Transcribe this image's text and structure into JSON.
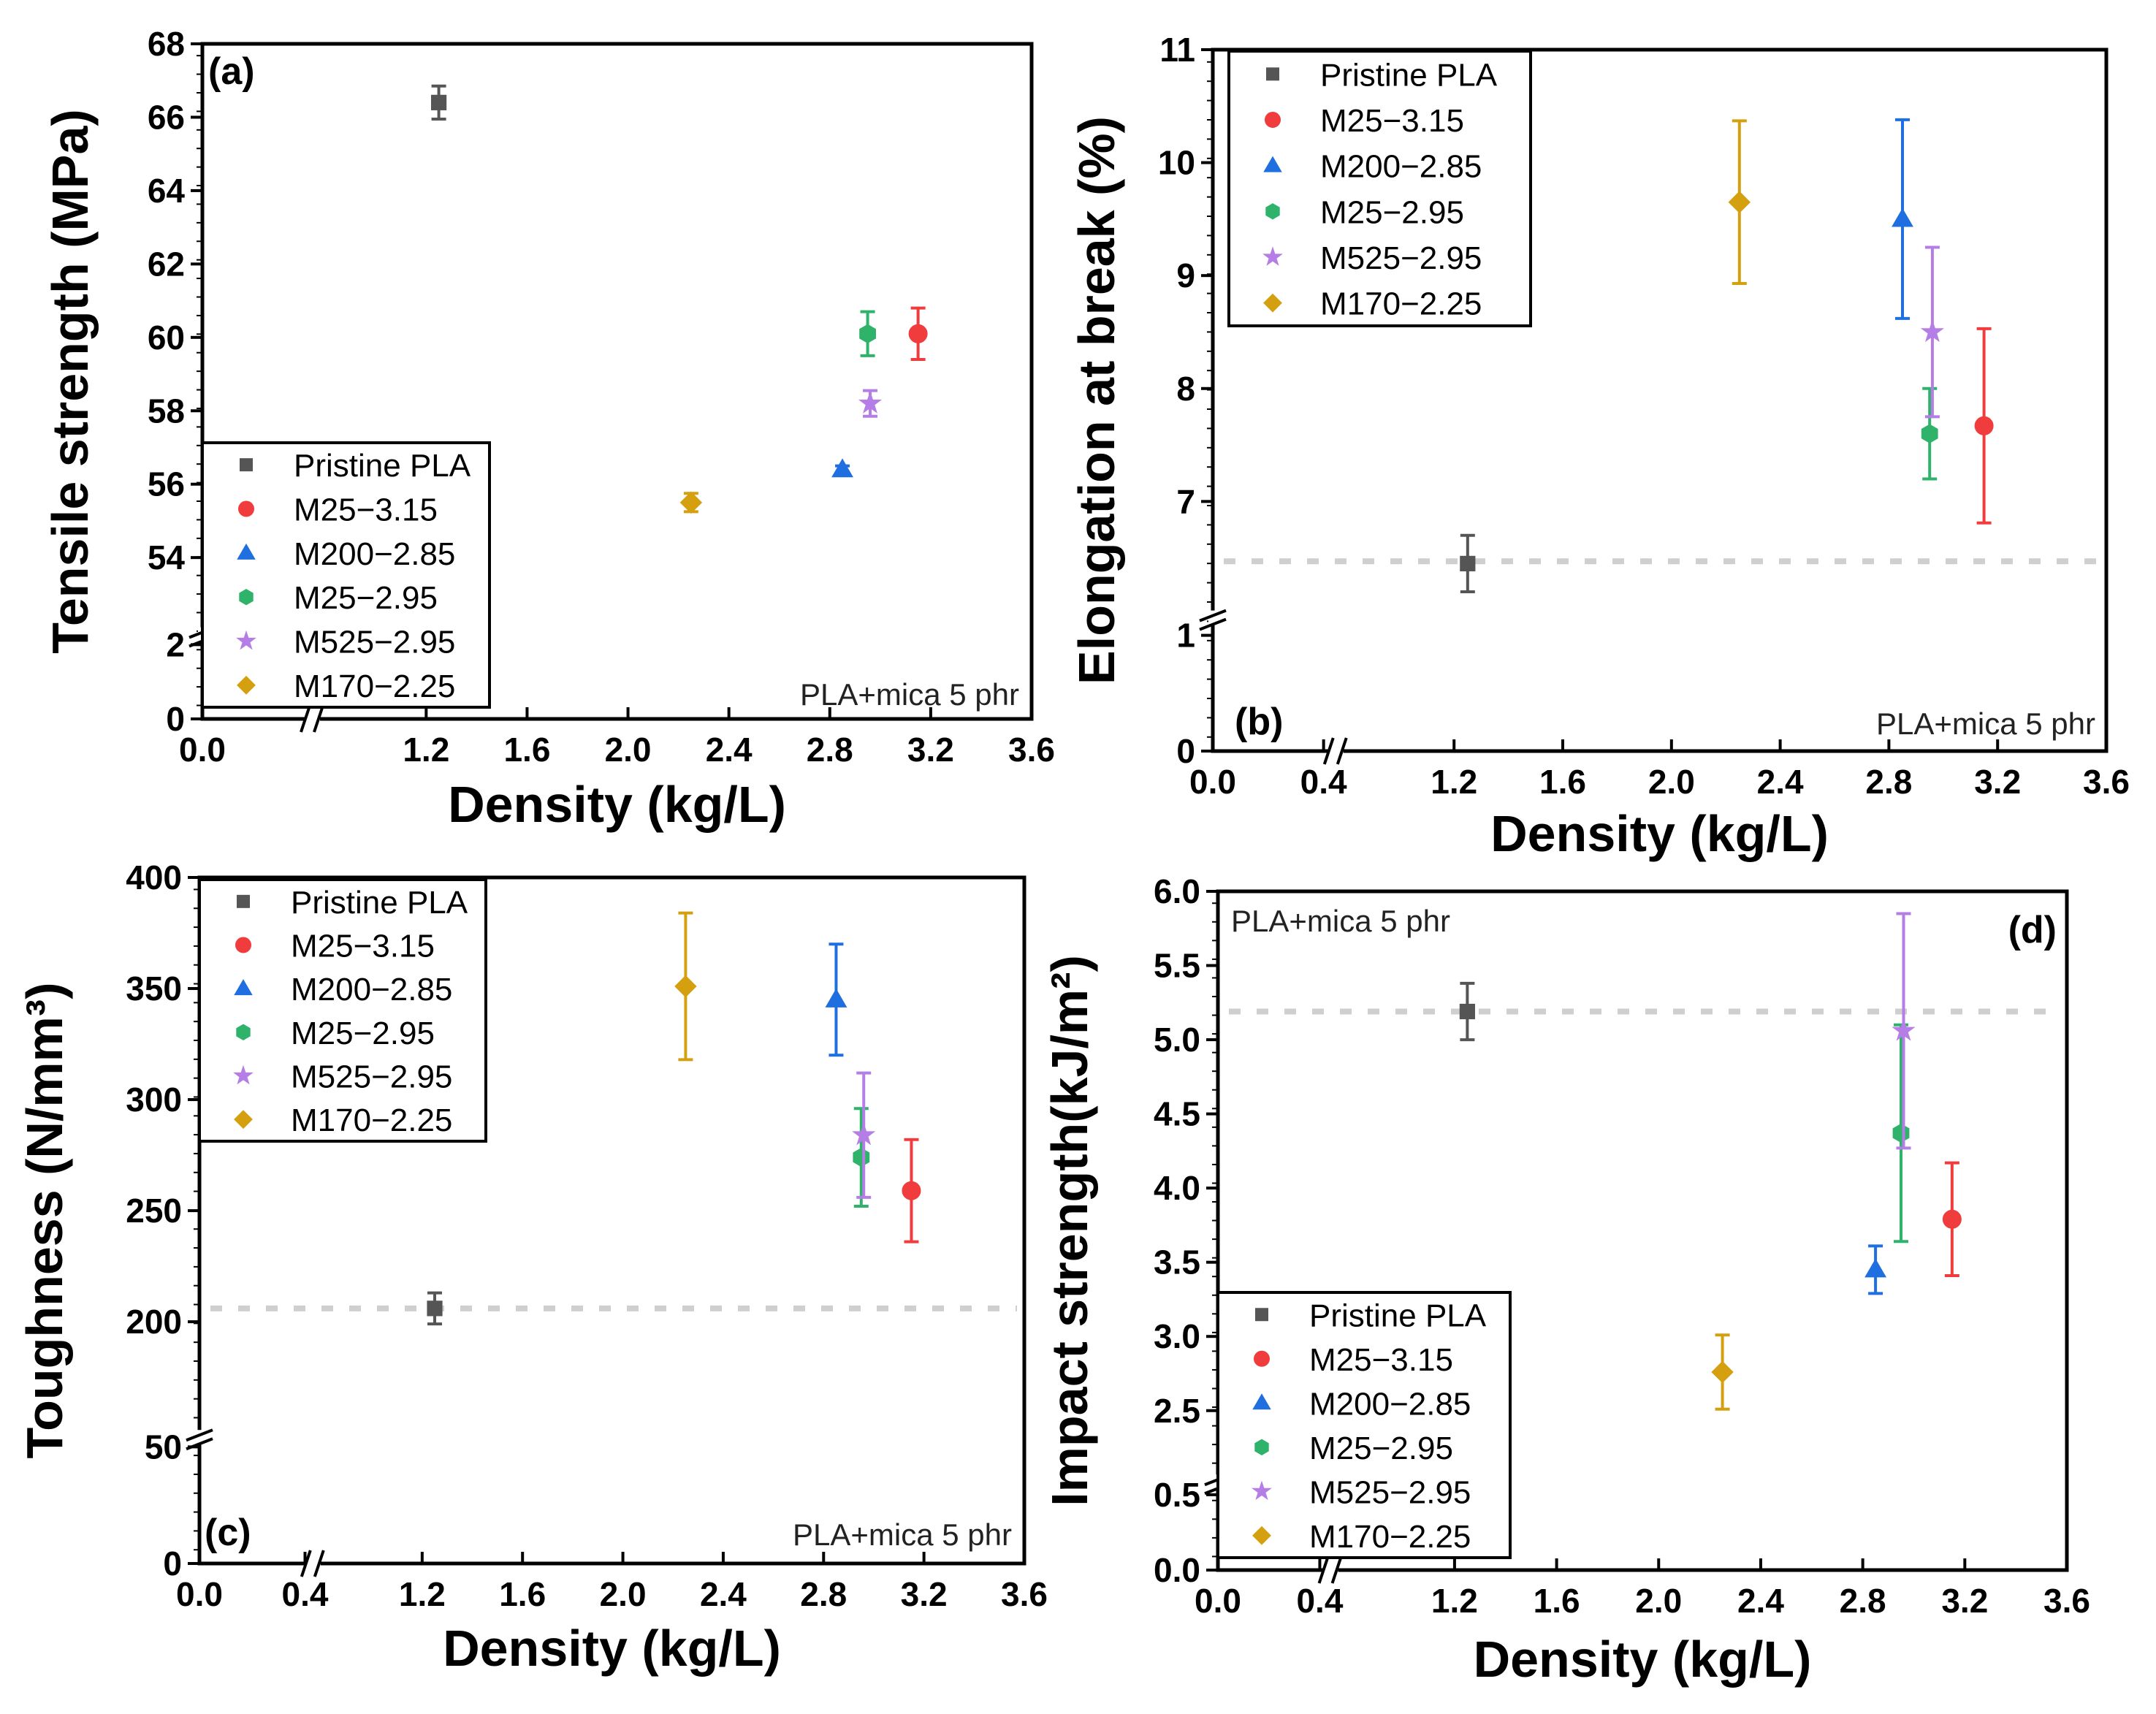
{
  "chart_data": [
    {
      "panel_label": "(a)",
      "type": "scatter",
      "title": "",
      "xlabel": "Density (kg/L)",
      "ylabel": "Tensile strength (MPa)",
      "annotation": "PLA+mica 5 phr",
      "xlim": [
        0,
        3.6
      ],
      "ylim": [
        0,
        68
      ],
      "x_break": [
        0.44,
        0.75
      ],
      "y_break": [
        2.3,
        52
      ],
      "x_ticks": [
        "0.0",
        "1.2",
        "1.6",
        "2.0",
        "2.4",
        "2.8",
        "3.2",
        "3.6"
      ],
      "y_ticks": [
        "0",
        "2",
        "54",
        "56",
        "58",
        "60",
        "62",
        "64",
        "66",
        "68"
      ],
      "reference_line": null,
      "legend_position": "bottom-left",
      "series": [
        {
          "name": "Pristine PLA",
          "color": "#555555",
          "marker": "square",
          "x": 1.25,
          "y": 66.4,
          "err": 0.45
        },
        {
          "name": "M25−3.15",
          "color": "#f03c3c",
          "marker": "circle",
          "x": 3.15,
          "y": 60.1,
          "err": 0.7
        },
        {
          "name": "M200−2.85",
          "color": "#1f6fe0",
          "marker": "triangle",
          "x": 2.85,
          "y": 56.4,
          "err": 0.1
        },
        {
          "name": "M25−2.95",
          "color": "#2fb36a",
          "marker": "hexagon",
          "x": 2.95,
          "y": 60.1,
          "err": 0.6
        },
        {
          "name": "M525−2.95",
          "color": "#b57ee6",
          "marker": "star",
          "x": 2.96,
          "y": 58.2,
          "err": 0.35
        },
        {
          "name": "M170−2.25",
          "color": "#d4a010",
          "marker": "diamond",
          "x": 2.25,
          "y": 55.5,
          "err": 0.25
        }
      ]
    },
    {
      "panel_label": "(b)",
      "type": "scatter",
      "title": "",
      "xlabel": "Density (kg/L)",
      "ylabel": "Elongation at break (%)",
      "annotation": "PLA+mica 5 phr",
      "xlim": [
        0,
        3.6
      ],
      "ylim": [
        0,
        11
      ],
      "x_break": [
        0.44,
        0.75
      ],
      "y_break": [
        1.15,
        6.0
      ],
      "x_ticks": [
        "0.0",
        "0.4",
        "1.2",
        "1.6",
        "2.0",
        "2.4",
        "2.8",
        "3.2",
        "3.6"
      ],
      "y_ticks": [
        "0",
        "1",
        "7",
        "8",
        "9",
        "10",
        "11"
      ],
      "reference_line": 6.47,
      "legend_position": "top-left",
      "series": [
        {
          "name": "Pristine PLA",
          "color": "#555555",
          "marker": "square",
          "x": 1.25,
          "y": 6.45,
          "err": 0.25
        },
        {
          "name": "M25−3.15",
          "color": "#f03c3c",
          "marker": "circle",
          "x": 3.15,
          "y": 7.67,
          "err": 0.86
        },
        {
          "name": "M200−2.85",
          "color": "#1f6fe0",
          "marker": "triangle",
          "x": 2.85,
          "y": 9.5,
          "err": 0.88
        },
        {
          "name": "M25−2.95",
          "color": "#2fb36a",
          "marker": "hexagon",
          "x": 2.95,
          "y": 7.6,
          "err": 0.4
        },
        {
          "name": "M525−2.95",
          "color": "#b57ee6",
          "marker": "star",
          "x": 2.96,
          "y": 8.5,
          "err": 0.75
        },
        {
          "name": "M170−2.25",
          "color": "#d4a010",
          "marker": "diamond",
          "x": 2.25,
          "y": 9.65,
          "err": 0.72
        }
      ]
    },
    {
      "panel_label": "(c)",
      "type": "scatter",
      "title": "",
      "xlabel": "Density (kg/L)",
      "ylabel": "Toughness (N/mm³)",
      "annotation": "PLA+mica 5 phr",
      "xlim": [
        0,
        3.6
      ],
      "ylim": [
        0,
        400
      ],
      "x_break": [
        0.44,
        0.75
      ],
      "y_break": [
        54,
        148
      ],
      "x_ticks": [
        "0.0",
        "0.4",
        "1.2",
        "1.6",
        "2.0",
        "2.4",
        "2.8",
        "3.2",
        "3.6"
      ],
      "y_ticks": [
        "0",
        "50",
        "200",
        "250",
        "300",
        "350",
        "400"
      ],
      "reference_line": 206,
      "legend_position": "top-left",
      "series": [
        {
          "name": "Pristine PLA",
          "color": "#555555",
          "marker": "square",
          "x": 1.25,
          "y": 206,
          "err": 7
        },
        {
          "name": "M25−3.15",
          "color": "#f03c3c",
          "marker": "circle",
          "x": 3.15,
          "y": 259,
          "err": 23
        },
        {
          "name": "M200−2.85",
          "color": "#1f6fe0",
          "marker": "triangle",
          "x": 2.85,
          "y": 345,
          "err": 25
        },
        {
          "name": "M25−2.95",
          "color": "#2fb36a",
          "marker": "hexagon",
          "x": 2.95,
          "y": 274,
          "err": 22
        },
        {
          "name": "M525−2.95",
          "color": "#b57ee6",
          "marker": "star",
          "x": 2.96,
          "y": 284,
          "err": 28
        },
        {
          "name": "M170−2.25",
          "color": "#d4a010",
          "marker": "diamond",
          "x": 2.25,
          "y": 351,
          "err": 33
        }
      ]
    },
    {
      "panel_label": "(d)",
      "type": "scatter",
      "title": "",
      "xlabel": "Density (kg/L)",
      "ylabel": "Impact strength(kJ/m²)",
      "annotation": "PLA+mica 5 phr",
      "xlim": [
        0,
        3.6
      ],
      "ylim": [
        0,
        6.0
      ],
      "x_break": [
        0.44,
        0.75
      ],
      "y_break": [
        0.58,
        2.0
      ],
      "x_ticks": [
        "0.0",
        "0.4",
        "1.2",
        "1.6",
        "2.0",
        "2.4",
        "2.8",
        "3.2",
        "3.6"
      ],
      "y_ticks": [
        "0.0",
        "0.5",
        "2.5",
        "3.0",
        "3.5",
        "4.0",
        "4.5",
        "5.0",
        "5.5",
        "6.0"
      ],
      "reference_line": 5.19,
      "legend_position": "bottom-left",
      "series": [
        {
          "name": "Pristine PLA",
          "color": "#555555",
          "marker": "square",
          "x": 1.25,
          "y": 5.19,
          "err": 0.19
        },
        {
          "name": "M25−3.15",
          "color": "#f03c3c",
          "marker": "circle",
          "x": 3.15,
          "y": 3.79,
          "err": 0.38
        },
        {
          "name": "M200−2.85",
          "color": "#1f6fe0",
          "marker": "triangle",
          "x": 2.85,
          "y": 3.45,
          "err": 0.16
        },
        {
          "name": "M25−2.95",
          "color": "#2fb36a",
          "marker": "hexagon",
          "x": 2.95,
          "y": 4.37,
          "err": 0.73
        },
        {
          "name": "M525−2.95",
          "color": "#b57ee6",
          "marker": "star",
          "x": 2.96,
          "y": 5.06,
          "err": 0.79
        },
        {
          "name": "M170−2.25",
          "color": "#d4a010",
          "marker": "diamond",
          "x": 2.25,
          "y": 2.76,
          "err": 0.25
        }
      ]
    }
  ]
}
